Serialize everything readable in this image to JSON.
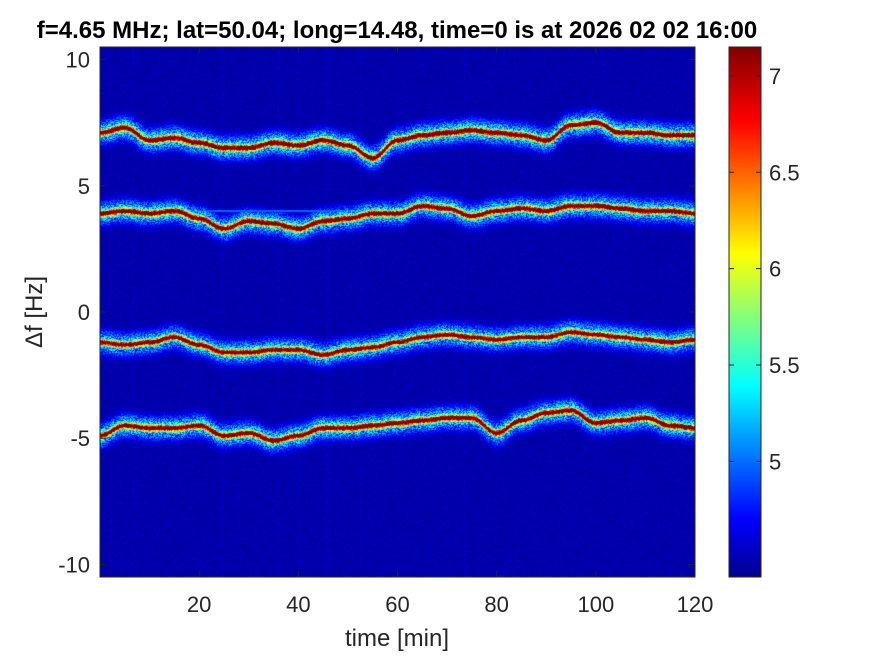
{
  "chart_data": {
    "type": "heatmap",
    "title": "f=4.65 MHz;  lat=50.04; long=14.48, time=0 is at 2026 02 02 16:00",
    "xlabel": "time [min]",
    "ylabel": "Δf [Hz]",
    "xlim": [
      0,
      120
    ],
    "ylim": [
      -10.5,
      10.5
    ],
    "xticks": [
      20,
      40,
      60,
      80,
      100,
      120
    ],
    "xtick_labels": [
      "20",
      "40",
      "60",
      "80",
      "100",
      "120"
    ],
    "yticks": [
      -10,
      -5,
      0,
      5,
      10
    ],
    "ytick_labels": [
      "-10",
      "-5",
      "0",
      "5",
      "10"
    ],
    "colorbar": {
      "range": [
        4.4,
        7.15
      ],
      "ticks": [
        5,
        5.5,
        6,
        6.5,
        7
      ],
      "tick_labels": [
        "5",
        "5.5",
        "6",
        "6.5",
        "7"
      ],
      "colormap": "jet"
    },
    "background_level": 4.45,
    "traces": [
      {
        "peak": 7.0,
        "points": [
          [
            0,
            7.1
          ],
          [
            5,
            7.3
          ],
          [
            10,
            6.8
          ],
          [
            15,
            6.9
          ],
          [
            20,
            6.7
          ],
          [
            25,
            6.5
          ],
          [
            30,
            6.5
          ],
          [
            35,
            6.7
          ],
          [
            40,
            6.6
          ],
          [
            45,
            6.8
          ],
          [
            50,
            6.6
          ],
          [
            55,
            6.1
          ],
          [
            60,
            6.8
          ],
          [
            65,
            7.0
          ],
          [
            70,
            7.1
          ],
          [
            75,
            7.2
          ],
          [
            80,
            7.1
          ],
          [
            85,
            7.0
          ],
          [
            90,
            6.8
          ],
          [
            95,
            7.4
          ],
          [
            100,
            7.5
          ],
          [
            105,
            7.1
          ],
          [
            110,
            7.1
          ],
          [
            115,
            7.0
          ],
          [
            120,
            7.0
          ]
        ]
      },
      {
        "peak": 6.9,
        "points": [
          [
            0,
            3.9
          ],
          [
            5,
            4.0
          ],
          [
            10,
            3.9
          ],
          [
            15,
            4.0
          ],
          [
            20,
            3.7
          ],
          [
            25,
            3.3
          ],
          [
            30,
            3.6
          ],
          [
            35,
            3.5
          ],
          [
            40,
            3.3
          ],
          [
            45,
            3.6
          ],
          [
            50,
            3.7
          ],
          [
            55,
            3.9
          ],
          [
            60,
            3.9
          ],
          [
            65,
            4.2
          ],
          [
            70,
            4.1
          ],
          [
            75,
            3.8
          ],
          [
            80,
            4.0
          ],
          [
            85,
            4.1
          ],
          [
            90,
            4.0
          ],
          [
            95,
            4.2
          ],
          [
            100,
            4.2
          ],
          [
            105,
            4.1
          ],
          [
            110,
            4.0
          ],
          [
            115,
            4.0
          ],
          [
            120,
            3.9
          ]
        ]
      },
      {
        "peak": 6.8,
        "points": [
          [
            0,
            -1.2
          ],
          [
            5,
            -1.3
          ],
          [
            10,
            -1.2
          ],
          [
            15,
            -1.0
          ],
          [
            20,
            -1.3
          ],
          [
            25,
            -1.6
          ],
          [
            30,
            -1.6
          ],
          [
            35,
            -1.5
          ],
          [
            40,
            -1.5
          ],
          [
            45,
            -1.7
          ],
          [
            50,
            -1.5
          ],
          [
            55,
            -1.4
          ],
          [
            60,
            -1.2
          ],
          [
            65,
            -1.0
          ],
          [
            70,
            -0.9
          ],
          [
            75,
            -1.0
          ],
          [
            80,
            -1.1
          ],
          [
            85,
            -1.0
          ],
          [
            90,
            -1.0
          ],
          [
            95,
            -0.8
          ],
          [
            100,
            -0.9
          ],
          [
            105,
            -1.0
          ],
          [
            110,
            -1.1
          ],
          [
            115,
            -1.2
          ],
          [
            120,
            -1.1
          ]
        ]
      },
      {
        "peak": 6.9,
        "points": [
          [
            0,
            -4.9
          ],
          [
            5,
            -4.5
          ],
          [
            10,
            -4.6
          ],
          [
            15,
            -4.6
          ],
          [
            20,
            -4.5
          ],
          [
            25,
            -4.9
          ],
          [
            30,
            -4.8
          ],
          [
            35,
            -5.1
          ],
          [
            40,
            -4.9
          ],
          [
            45,
            -4.6
          ],
          [
            50,
            -4.6
          ],
          [
            55,
            -4.5
          ],
          [
            60,
            -4.4
          ],
          [
            65,
            -4.3
          ],
          [
            70,
            -4.2
          ],
          [
            75,
            -4.2
          ],
          [
            80,
            -4.8
          ],
          [
            85,
            -4.3
          ],
          [
            90,
            -4.0
          ],
          [
            95,
            -3.9
          ],
          [
            100,
            -4.4
          ],
          [
            105,
            -4.3
          ],
          [
            110,
            -4.2
          ],
          [
            115,
            -4.5
          ],
          [
            120,
            -4.6
          ]
        ]
      }
    ],
    "horizontal_artifact": {
      "y": 4.0,
      "x_range": [
        0,
        80
      ],
      "level": 5.0
    }
  }
}
